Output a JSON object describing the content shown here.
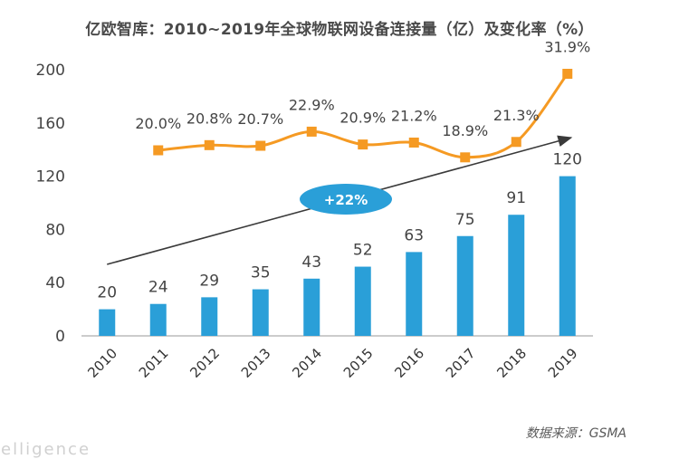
{
  "chart_data": {
    "type": "bar",
    "title": "亿欧智库：2010~2019年全球物联网设备连接量（亿）及变化率（%）",
    "categories": [
      "2010",
      "2011",
      "2012",
      "2013",
      "2014",
      "2015",
      "2016",
      "2017",
      "2018",
      "2019"
    ],
    "values": [
      20,
      24,
      29,
      35,
      43,
      52,
      63,
      75,
      91,
      120
    ],
    "ylim": [
      0,
      200
    ],
    "yticks": [
      "0",
      "40",
      "80",
      "120",
      "160",
      "200"
    ],
    "bar_color": "#2a9fd8",
    "line_series": {
      "labels": [
        "20.0%",
        "20.8%",
        "20.7%",
        "22.9%",
        "20.9%",
        "21.2%",
        "18.9%",
        "21.3%",
        "31.9%"
      ],
      "values_pct": [
        20.0,
        20.8,
        20.7,
        22.9,
        20.9,
        21.2,
        18.9,
        21.3,
        31.9
      ],
      "color": "#f59a23"
    },
    "trend_annotation": "+22%",
    "annotation_color": "#2a9fd8"
  },
  "source": "数据来源：GSMA",
  "watermark": "telligence"
}
